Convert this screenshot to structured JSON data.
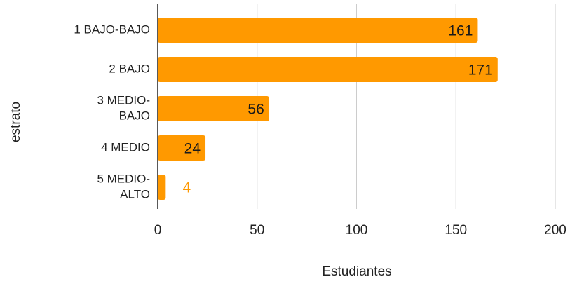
{
  "chart_data": {
    "type": "bar",
    "orientation": "horizontal",
    "title": "",
    "xlabel": "Estudiantes",
    "ylabel": "estrato",
    "categories": [
      [
        "1 BAJO-BAJO"
      ],
      [
        "2 BAJO"
      ],
      [
        "3 MEDIO-",
        "BAJO"
      ],
      [
        "4 MEDIO"
      ],
      [
        "5 MEDIO-",
        "ALTO"
      ]
    ],
    "values": [
      161,
      171,
      56,
      24,
      4
    ],
    "data_labels": [
      "161",
      "171",
      "56",
      "24",
      "4"
    ],
    "xlim": [
      0,
      200
    ],
    "xticks": [
      0,
      50,
      100,
      150,
      200
    ],
    "xtick_labels": [
      "0",
      "50",
      "100",
      "150",
      "200"
    ],
    "grid": "vertical",
    "legend": "none",
    "colors": {
      "bar": "#ff9900",
      "label_inside": "#1a1a1a",
      "label_outside": "#ff9900",
      "grid": "#cccccc",
      "axis": "#222222"
    }
  }
}
